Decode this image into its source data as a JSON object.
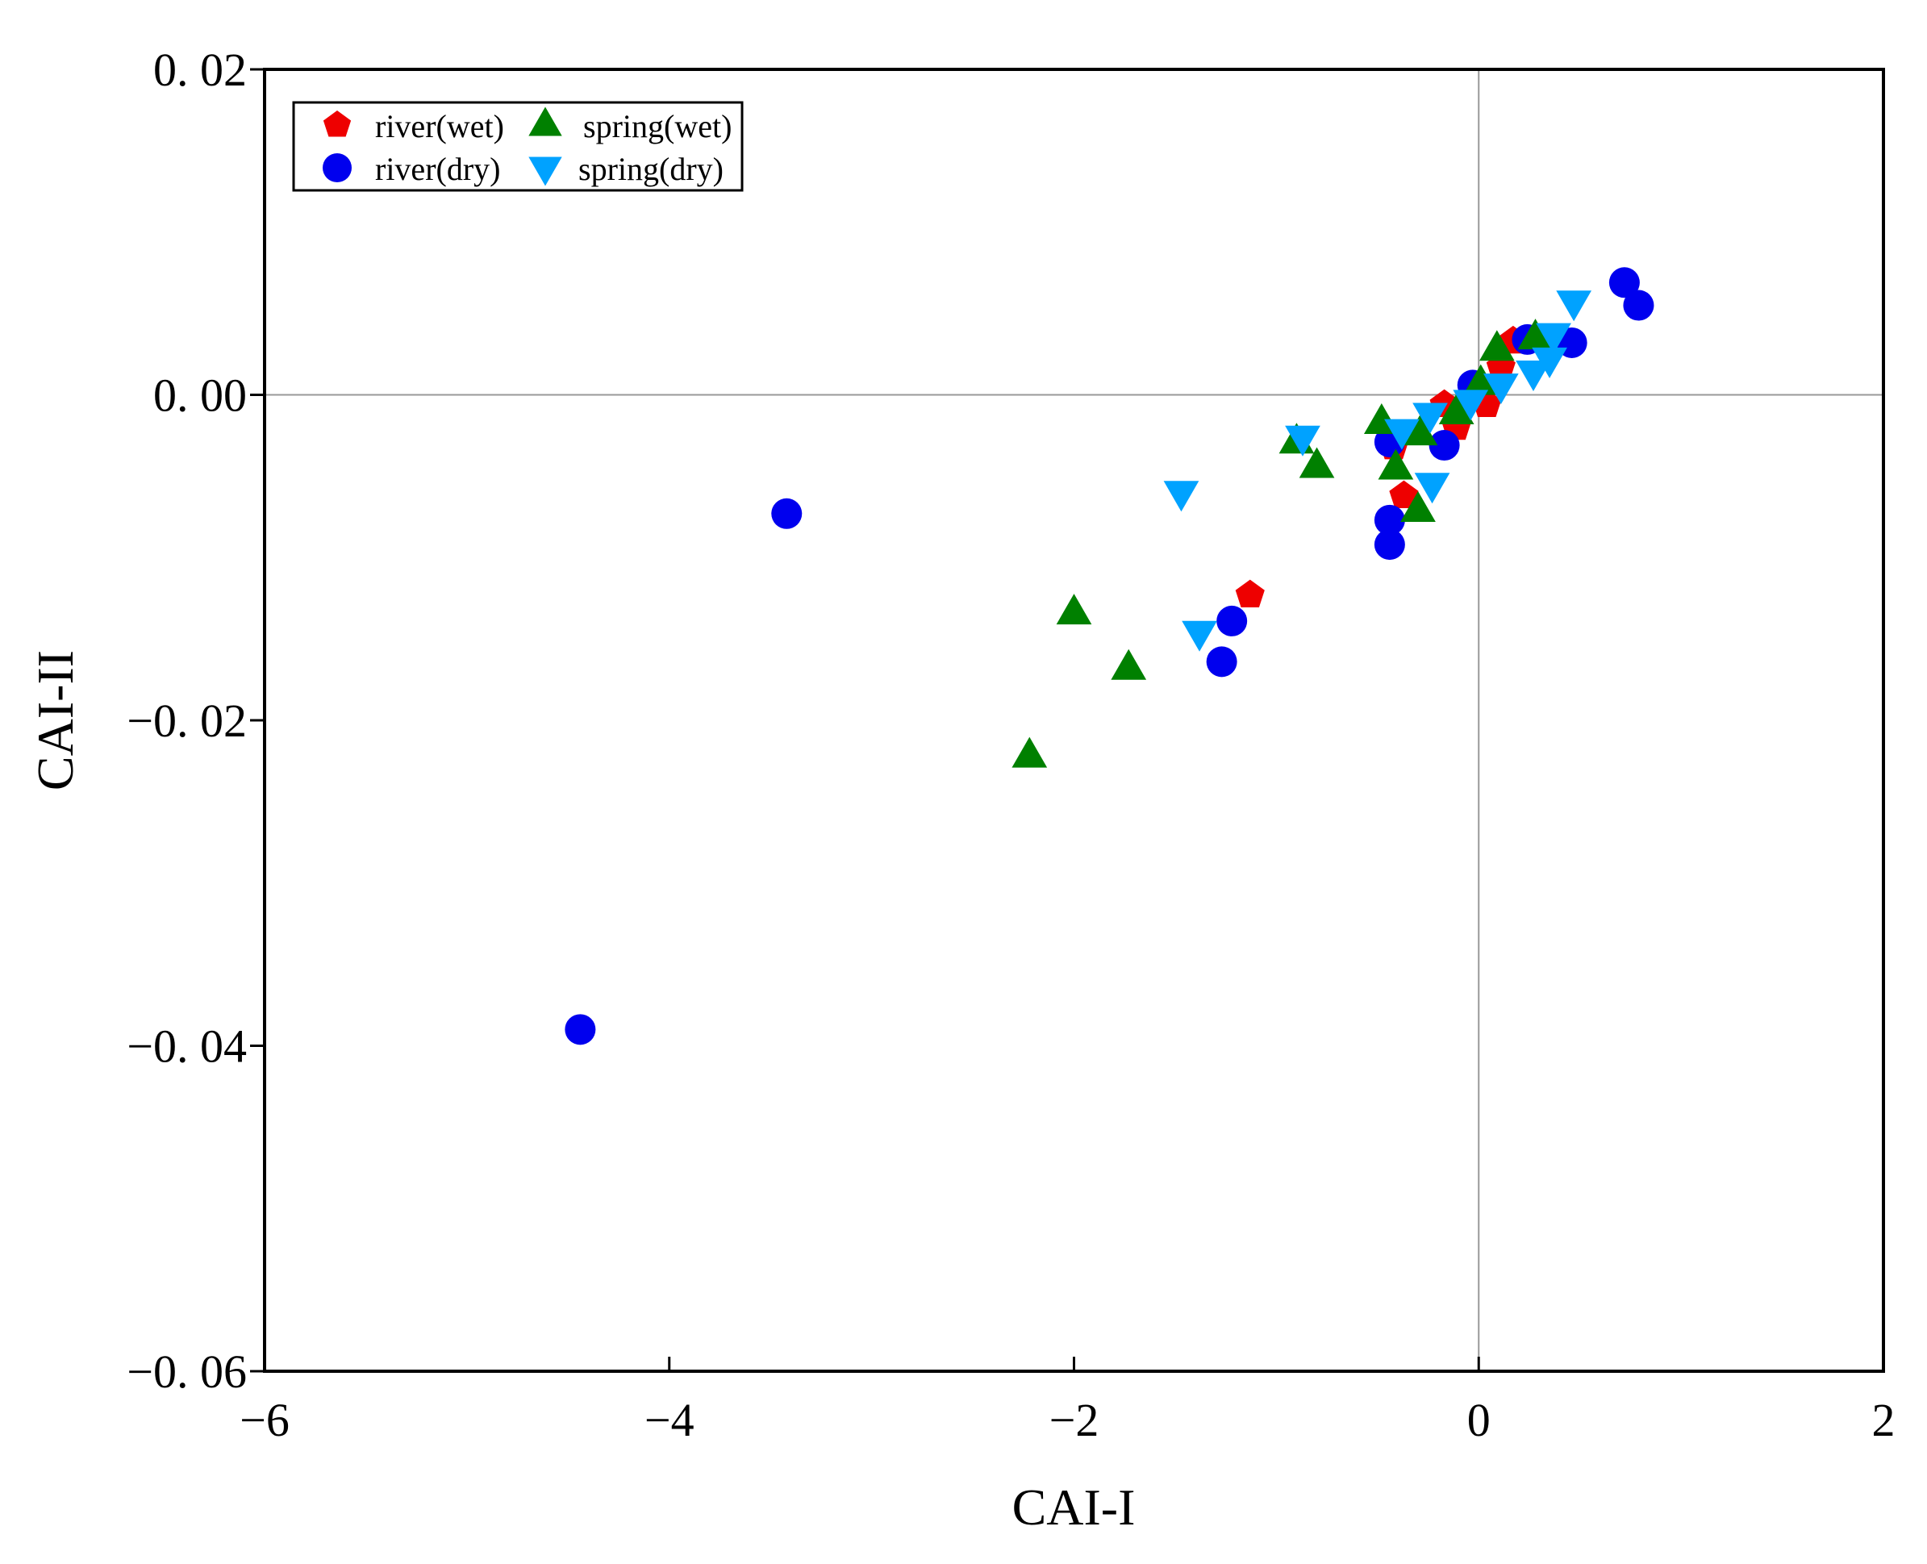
{
  "chart_data": {
    "type": "scatter",
    "xlabel": "CAI-I",
    "ylabel": "CAI-II",
    "xlim": [
      -6,
      2
    ],
    "ylim": [
      -0.06,
      0.02
    ],
    "xticks": [
      -6,
      -4,
      -2,
      0,
      2
    ],
    "xtick_labels": [
      "−6",
      "−4",
      "−2",
      "0",
      "2"
    ],
    "yticks": [
      0.02,
      0.0,
      -0.02,
      -0.04,
      -0.06
    ],
    "ytick_labels": [
      "0. 02",
      "0. 00",
      "−0. 02",
      "−0. 04",
      "−0. 06"
    ],
    "grid": false,
    "reference_lines": {
      "x": 0,
      "y": 0,
      "color": "#999999"
    },
    "legend_position": "top-left",
    "series": [
      {
        "name": "river(wet)",
        "marker": "pentagon",
        "color": "#ee0000",
        "x": [
          0.17,
          0.11,
          -0.11,
          -0.17,
          -0.42,
          -0.37,
          0.04,
          -1.13
        ],
        "y": [
          0.0033,
          0.0017,
          -0.002,
          -0.0006,
          -0.0032,
          -0.0062,
          -0.0006,
          -0.0123
        ]
      },
      {
        "name": "river(dry)",
        "marker": "circle",
        "color": "#0000ee",
        "x": [
          0.72,
          0.79,
          0.46,
          0.24,
          -0.17,
          -0.44,
          -0.44,
          -0.44,
          -0.03,
          -4.44,
          -3.42,
          -1.22,
          -1.27
        ],
        "y": [
          0.0069,
          0.0055,
          0.0032,
          0.0034,
          -0.0031,
          -0.0029,
          -0.0077,
          -0.0092,
          0.0006,
          -0.039,
          -0.0073,
          -0.0139,
          -0.0164
        ]
      },
      {
        "name": "spring(wet)",
        "marker": "triangle-up",
        "color": "#008000",
        "x": [
          0.09,
          0.28,
          -0.48,
          -0.29,
          -0.41,
          -0.3,
          -0.11,
          0.01,
          -2.0,
          -1.73,
          -2.22,
          -0.9,
          -0.8
        ],
        "y": [
          0.0028,
          0.0035,
          -0.0017,
          -0.0024,
          -0.0045,
          -0.0071,
          -0.0011,
          0.0007,
          -0.0134,
          -0.0168,
          -0.0222,
          -0.0029,
          -0.0044
        ]
      },
      {
        "name": "spring(dry)",
        "marker": "triangle-down",
        "color": "#00a2ff",
        "x": [
          0.47,
          0.37,
          0.35,
          0.27,
          0.11,
          -0.04,
          -0.24,
          -0.38,
          -0.23,
          -1.47,
          -0.87,
          -1.38
        ],
        "y": [
          0.0057,
          0.0037,
          0.0022,
          0.0014,
          0.0006,
          -0.0004,
          -0.0012,
          -0.0022,
          -0.0055,
          -0.006,
          -0.0026,
          -0.0146
        ]
      }
    ]
  }
}
